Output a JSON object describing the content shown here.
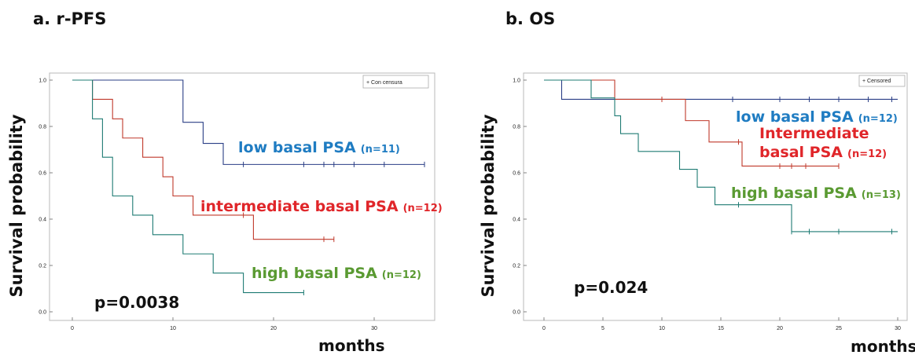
{
  "chart_data": [
    {
      "type": "line",
      "panel_title": "a. r-PFS",
      "ylabel": "Survival probability",
      "xlabel": "months",
      "annotation": "p=0.0038",
      "legend": "+ Con censura",
      "legend_position": "top-right",
      "xlim": [
        0,
        35
      ],
      "ylim": [
        0,
        1
      ],
      "xticks": [
        0,
        10,
        20,
        30
      ],
      "yticks": [
        "0.0",
        "0.2",
        "0.4",
        "0.6",
        "0.8",
        "1.0"
      ],
      "series": [
        {
          "name": "low basal PSA",
          "n_label": "(n=11)",
          "color": "#1f7cc2",
          "line_color": "#2b3f86",
          "steps": [
            [
              0,
              1.0
            ],
            [
              11,
              0.818
            ],
            [
              13,
              0.727
            ],
            [
              15,
              0.636
            ],
            [
              35,
              0.636
            ]
          ],
          "censored": [
            17,
            23,
            25,
            26,
            28,
            31,
            35
          ]
        },
        {
          "name": "intermediate basal PSA",
          "n_label": "(n=12)",
          "color": "#e0262a",
          "line_color": "#c0392b",
          "steps": [
            [
              0,
              1.0
            ],
            [
              2,
              0.917
            ],
            [
              4,
              0.833
            ],
            [
              5,
              0.75
            ],
            [
              7,
              0.667
            ],
            [
              9,
              0.583
            ],
            [
              10,
              0.5
            ],
            [
              12,
              0.417
            ],
            [
              18,
              0.313
            ],
            [
              26,
              0.313
            ]
          ],
          "censored": [
            17,
            25,
            26
          ]
        },
        {
          "name": "high basal PSA",
          "n_label": "(n=12)",
          "color": "#5a9a32",
          "line_color": "#1e7b73",
          "steps": [
            [
              0,
              1.0
            ],
            [
              2,
              0.833
            ],
            [
              3,
              0.667
            ],
            [
              4,
              0.5
            ],
            [
              6,
              0.417
            ],
            [
              8,
              0.333
            ],
            [
              11,
              0.25
            ],
            [
              14,
              0.167
            ],
            [
              17,
              0.083
            ],
            [
              23,
              0.083
            ]
          ],
          "censored": [
            23
          ]
        }
      ]
    },
    {
      "type": "line",
      "panel_title": "b. OS",
      "ylabel": "Survival probability",
      "xlabel": "months",
      "annotation": "p=0.024",
      "legend": "+ Censored",
      "legend_position": "top-right",
      "xlim": [
        0,
        30
      ],
      "ylim": [
        0,
        1
      ],
      "xticks": [
        0,
        5,
        10,
        15,
        20,
        25,
        30
      ],
      "yticks": [
        "0.0",
        "0.2",
        "0.4",
        "0.6",
        "0.8",
        "1.0"
      ],
      "series": [
        {
          "name": "low basal PSA",
          "n_label": "(n=12)",
          "color": "#1f7cc2",
          "line_color": "#2b3f86",
          "steps": [
            [
              0,
              1.0
            ],
            [
              1.5,
              0.917
            ],
            [
              30,
              0.917
            ]
          ],
          "censored": [
            16,
            20,
            22.5,
            25,
            27.5,
            29.5
          ]
        },
        {
          "name": "Intermediate\nbasal PSA",
          "n_label": "(n=12)",
          "color": "#e0262a",
          "line_color": "#c0392b",
          "steps": [
            [
              0,
              1.0
            ],
            [
              6,
              0.917
            ],
            [
              12,
              0.825
            ],
            [
              14,
              0.733
            ],
            [
              16.8,
              0.629
            ],
            [
              25,
              0.629
            ]
          ],
          "censored": [
            10,
            16.5,
            20,
            21,
            22.2,
            25
          ]
        },
        {
          "name": "high basal PSA",
          "n_label": "(n=13)",
          "color": "#5a9a32",
          "line_color": "#1e7b73",
          "steps": [
            [
              0,
              1.0
            ],
            [
              4,
              0.923
            ],
            [
              6,
              0.846
            ],
            [
              6.5,
              0.769
            ],
            [
              8,
              0.692
            ],
            [
              11.5,
              0.615
            ],
            [
              13,
              0.538
            ],
            [
              14.5,
              0.462
            ],
            [
              21,
              0.346
            ],
            [
              30,
              0.346
            ]
          ],
          "censored": [
            16.5,
            21,
            22.5,
            25,
            29.5
          ]
        }
      ]
    }
  ]
}
